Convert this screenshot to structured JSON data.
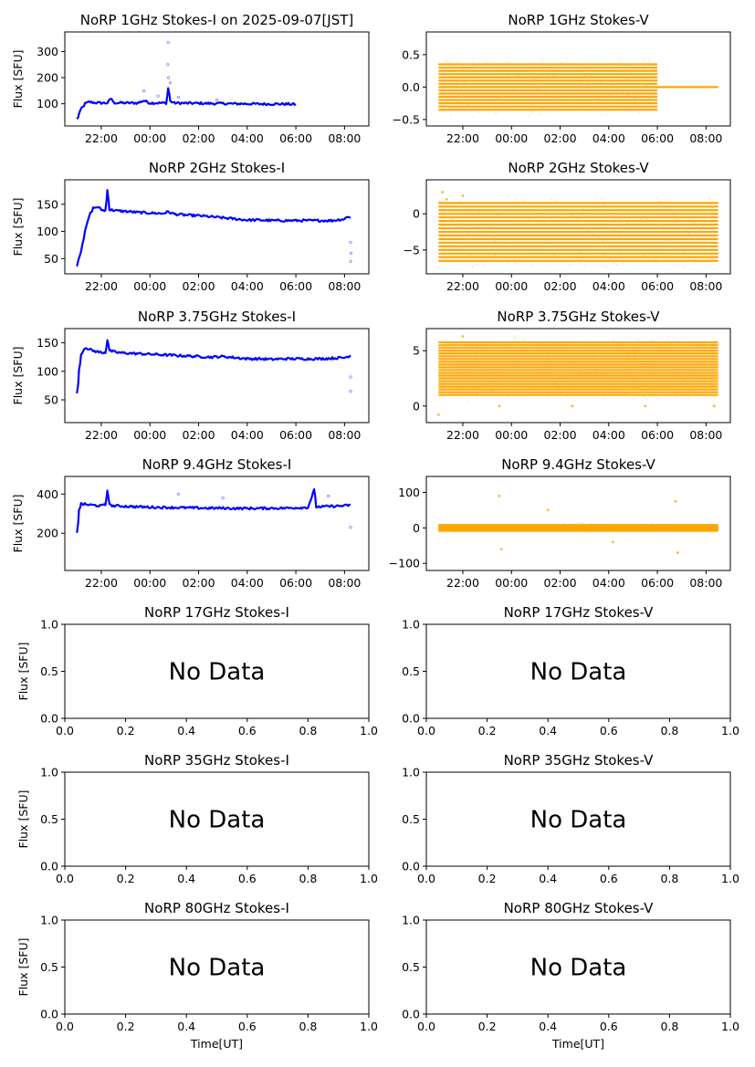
{
  "figure": {
    "x_axis_label": "Time[UT]",
    "y_axis_label": "Flux [SFU]",
    "no_data_label": "No Data"
  },
  "colors": {
    "stokes_i": "#0000ff",
    "stokes_v": "#ffa500",
    "axes": "#000000"
  },
  "chart_data": [
    {
      "id": "p1i",
      "type": "line",
      "title": "NoRP 1GHz Stokes-I on 2025-09-07[JST]",
      "has_data": true,
      "color": "#0000ff",
      "xaxis": "time",
      "xlim": [
        "20:30",
        "09:00"
      ],
      "xticks": [
        "22:00",
        "00:00",
        "02:00",
        "04:00",
        "06:00",
        "08:00"
      ],
      "ylim": [
        15,
        375
      ],
      "yticks": [
        100,
        200,
        300
      ],
      "ylabel": "Flux [SFU]",
      "series": [
        {
          "x": [
            "21:00",
            "21:05",
            "21:10",
            "21:20",
            "21:30",
            "21:45",
            "22:00",
            "22:15",
            "22:25",
            "22:30",
            "23:00",
            "23:30",
            "23:45",
            "00:00",
            "00:20",
            "00:40",
            "00:45",
            "00:50",
            "01:00",
            "01:30",
            "02:00",
            "02:30",
            "03:00",
            "03:30",
            "04:00",
            "04:30",
            "05:00",
            "05:30",
            "06:00"
          ],
          "y": [
            40,
            60,
            80,
            100,
            107,
            104,
            103,
            103,
            120,
            104,
            103,
            103,
            112,
            103,
            103,
            103,
            160,
            110,
            103,
            102,
            102,
            101,
            101,
            100,
            100,
            99,
            99,
            99,
            98
          ],
          "outliers": [
            {
              "x": "00:45",
              "y": 335
            },
            {
              "x": "00:44",
              "y": 250
            },
            {
              "x": "00:46",
              "y": 200
            },
            {
              "x": "23:45",
              "y": 150
            },
            {
              "x": "00:20",
              "y": 130
            },
            {
              "x": "02:45",
              "y": 115
            },
            {
              "x": "00:50",
              "y": 180
            },
            {
              "x": "01:10",
              "y": 125
            }
          ]
        }
      ]
    },
    {
      "id": "p1v",
      "type": "scatter",
      "title": "NoRP 1GHz Stokes-V",
      "has_data": true,
      "color": "#ffa500",
      "xaxis": "time",
      "xlim": [
        "20:30",
        "09:00"
      ],
      "xticks": [
        "22:00",
        "00:00",
        "02:00",
        "04:00",
        "06:00",
        "08:00"
      ],
      "ylim": [
        -0.6,
        0.85
      ],
      "yticks": [
        -0.5,
        0.0,
        0.5
      ],
      "ytick_labels": [
        "−0.5",
        "0.0",
        "0.5"
      ],
      "series": [
        {
          "x_range": [
            "21:00",
            "06:00"
          ],
          "levels": [
            -0.35,
            0.35
          ],
          "step": 0.05,
          "tail": {
            "x_range": [
              "06:00",
              "08:30"
            ],
            "y": 0.0
          }
        }
      ]
    },
    {
      "id": "p2i",
      "type": "line",
      "title": "NoRP 2GHz Stokes-I",
      "has_data": true,
      "color": "#0000ff",
      "xaxis": "time",
      "xlim": [
        "20:30",
        "09:00"
      ],
      "xticks": [
        "22:00",
        "00:00",
        "02:00",
        "04:00",
        "06:00",
        "08:00"
      ],
      "ylim": [
        22,
        195
      ],
      "yticks": [
        50,
        100,
        150
      ],
      "ylabel": "Flux [SFU]",
      "series": [
        {
          "x": [
            "21:00",
            "21:10",
            "21:20",
            "21:30",
            "21:40",
            "21:50",
            "22:00",
            "22:10",
            "22:15",
            "22:20",
            "22:40",
            "23:00",
            "23:30",
            "00:00",
            "00:30",
            "00:45",
            "01:00",
            "01:30",
            "02:00",
            "02:30",
            "03:00",
            "03:30",
            "04:00",
            "04:30",
            "05:00",
            "05:30",
            "06:00",
            "06:30",
            "07:00",
            "07:30",
            "08:00",
            "08:10",
            "08:15"
          ],
          "y": [
            38,
            65,
            100,
            128,
            143,
            145,
            140,
            138,
            176,
            140,
            138,
            137,
            135,
            134,
            133,
            136,
            132,
            130,
            129,
            127,
            125,
            123,
            121,
            121,
            120,
            120,
            120,
            120,
            120,
            120,
            123,
            128,
            125
          ],
          "outliers": [
            {
              "x": "08:15",
              "y": 45
            },
            {
              "x": "08:16",
              "y": 60
            },
            {
              "x": "08:15",
              "y": 80
            }
          ]
        }
      ]
    },
    {
      "id": "p2v",
      "type": "scatter",
      "title": "NoRP 2GHz Stokes-V",
      "has_data": true,
      "color": "#ffa500",
      "xaxis": "time",
      "xlim": [
        "20:30",
        "09:00"
      ],
      "xticks": [
        "22:00",
        "00:00",
        "02:00",
        "04:00",
        "06:00",
        "08:00"
      ],
      "ylim": [
        -8.3,
        4.7
      ],
      "yticks": [
        -5,
        0
      ],
      "ytick_labels": [
        "−5",
        "0"
      ],
      "series": [
        {
          "x_range": [
            "21:00",
            "08:30"
          ],
          "levels": [
            -6.5,
            1.5
          ],
          "step": 0.5,
          "extra": [
            {
              "x": "21:10",
              "y": 3.0
            },
            {
              "x": "22:00",
              "y": 2.5
            },
            {
              "x": "21:20",
              "y": 2.0
            }
          ]
        }
      ]
    },
    {
      "id": "p3i",
      "type": "line",
      "title": "NoRP 3.75GHz Stokes-I",
      "has_data": true,
      "color": "#0000ff",
      "xaxis": "time",
      "xlim": [
        "20:30",
        "09:00"
      ],
      "xticks": [
        "22:00",
        "00:00",
        "02:00",
        "04:00",
        "06:00",
        "08:00"
      ],
      "ylim": [
        10,
        175
      ],
      "yticks": [
        50,
        100,
        150
      ],
      "ylabel": "Flux [SFU]",
      "series": [
        {
          "x": [
            "21:00",
            "21:05",
            "21:10",
            "21:20",
            "21:40",
            "22:00",
            "22:10",
            "22:15",
            "22:20",
            "22:40",
            "23:00",
            "23:30",
            "00:00",
            "00:30",
            "01:00",
            "01:30",
            "02:00",
            "02:30",
            "03:00",
            "03:30",
            "04:00",
            "04:30",
            "05:00",
            "05:30",
            "06:00",
            "06:30",
            "07:00",
            "07:30",
            "08:00",
            "08:15"
          ],
          "y": [
            60,
            100,
            130,
            142,
            136,
            133,
            133,
            156,
            136,
            133,
            132,
            131,
            130,
            129,
            128,
            127,
            126,
            125,
            126,
            124,
            122,
            122,
            121,
            122,
            122,
            122,
            122,
            123,
            124,
            128
          ],
          "outliers": [
            {
              "x": "08:15",
              "y": 65
            },
            {
              "x": "08:15",
              "y": 90
            }
          ]
        }
      ]
    },
    {
      "id": "p3v",
      "type": "scatter",
      "title": "NoRP 3.75GHz Stokes-V",
      "has_data": true,
      "color": "#ffa500",
      "xaxis": "time",
      "xlim": [
        "20:30",
        "09:00"
      ],
      "xticks": [
        "22:00",
        "00:00",
        "02:00",
        "04:00",
        "06:00",
        "08:00"
      ],
      "ylim": [
        -1.5,
        7.0
      ],
      "yticks": [
        0,
        5
      ],
      "series": [
        {
          "x_range": [
            "21:00",
            "08:30"
          ],
          "levels": [
            1.0,
            5.8
          ],
          "step": 0.25,
          "extra": [
            {
              "x": "21:00",
              "y": -0.8
            },
            {
              "x": "23:30",
              "y": 0.0
            },
            {
              "x": "02:30",
              "y": 0.0
            },
            {
              "x": "05:30",
              "y": 0.0
            },
            {
              "x": "08:20",
              "y": 0.0
            },
            {
              "x": "22:00",
              "y": 6.3
            }
          ]
        }
      ]
    },
    {
      "id": "p4i",
      "type": "line",
      "title": "NoRP 9.4GHz Stokes-I",
      "has_data": true,
      "color": "#0000ff",
      "xaxis": "time",
      "xlim": [
        "20:30",
        "09:00"
      ],
      "xticks": [
        "22:00",
        "00:00",
        "02:00",
        "04:00",
        "06:00",
        "08:00"
      ],
      "ylim": [
        10,
        490
      ],
      "yticks": [
        200,
        400
      ],
      "ylabel": "Flux [SFU]",
      "series": [
        {
          "x": [
            "21:00",
            "21:05",
            "21:10",
            "21:30",
            "22:00",
            "22:10",
            "22:15",
            "22:20",
            "22:30",
            "23:00",
            "23:30",
            "00:00",
            "00:30",
            "01:00",
            "01:30",
            "02:00",
            "02:30",
            "03:00",
            "03:30",
            "04:00",
            "04:30",
            "05:00",
            "05:30",
            "06:00",
            "06:30",
            "06:45",
            "06:50",
            "07:00",
            "07:30",
            "08:00",
            "08:15"
          ],
          "y": [
            200,
            320,
            350,
            345,
            340,
            345,
            420,
            345,
            340,
            338,
            335,
            333,
            332,
            331,
            330,
            329,
            328,
            328,
            327,
            327,
            327,
            328,
            328,
            330,
            332,
            420,
            335,
            335,
            338,
            340,
            345
          ],
          "outliers": [
            {
              "x": "08:15",
              "y": 230
            },
            {
              "x": "07:20",
              "y": 390
            },
            {
              "x": "03:00",
              "y": 380
            },
            {
              "x": "01:10",
              "y": 400
            }
          ]
        }
      ]
    },
    {
      "id": "p4v",
      "type": "scatter",
      "title": "NoRP 9.4GHz Stokes-V",
      "has_data": true,
      "color": "#ffa500",
      "xaxis": "time",
      "xlim": [
        "20:30",
        "09:00"
      ],
      "xticks": [
        "22:00",
        "00:00",
        "02:00",
        "04:00",
        "06:00",
        "08:00"
      ],
      "ylim": [
        -120,
        145
      ],
      "yticks": [
        -100,
        0,
        100
      ],
      "ytick_labels": [
        "−100",
        "0",
        "100"
      ],
      "series": [
        {
          "x_range": [
            "21:00",
            "08:30"
          ],
          "levels": [
            -8,
            8
          ],
          "step": 2,
          "extra": [
            {
              "x": "23:30",
              "y": 90
            },
            {
              "x": "23:35",
              "y": -60
            },
            {
              "x": "06:45",
              "y": 75
            },
            {
              "x": "06:50",
              "y": -70
            },
            {
              "x": "01:30",
              "y": 50
            },
            {
              "x": "04:10",
              "y": -40
            }
          ]
        }
      ]
    },
    {
      "id": "p5i",
      "type": "empty",
      "title": "NoRP 17GHz Stokes-I",
      "has_data": false,
      "xlim": [
        0,
        1
      ],
      "ylim": [
        0,
        1
      ],
      "ylabel": "Flux [SFU]",
      "xticks": [
        "0.0",
        "0.2",
        "0.4",
        "0.6",
        "0.8",
        "1.0"
      ],
      "yticks": [
        "0.0",
        "0.5",
        "1.0"
      ]
    },
    {
      "id": "p5v",
      "type": "empty",
      "title": "NoRP 17GHz Stokes-V",
      "has_data": false,
      "xlim": [
        0,
        1
      ],
      "ylim": [
        0,
        1
      ],
      "xticks": [
        "0.0",
        "0.2",
        "0.4",
        "0.6",
        "0.8",
        "1.0"
      ],
      "yticks": [
        "0.0",
        "0.5",
        "1.0"
      ]
    },
    {
      "id": "p6i",
      "type": "empty",
      "title": "NoRP 35GHz Stokes-I",
      "has_data": false,
      "xlim": [
        0,
        1
      ],
      "ylim": [
        0,
        1
      ],
      "ylabel": "Flux [SFU]",
      "xticks": [
        "0.0",
        "0.2",
        "0.4",
        "0.6",
        "0.8",
        "1.0"
      ],
      "yticks": [
        "0.0",
        "0.5",
        "1.0"
      ]
    },
    {
      "id": "p6v",
      "type": "empty",
      "title": "NoRP 35GHz Stokes-V",
      "has_data": false,
      "xlim": [
        0,
        1
      ],
      "ylim": [
        0,
        1
      ],
      "xticks": [
        "0.0",
        "0.2",
        "0.4",
        "0.6",
        "0.8",
        "1.0"
      ],
      "yticks": [
        "0.0",
        "0.5",
        "1.0"
      ]
    },
    {
      "id": "p7i",
      "type": "empty",
      "title": "NoRP 80GHz Stokes-I",
      "has_data": false,
      "xlim": [
        0,
        1
      ],
      "ylim": [
        0,
        1
      ],
      "ylabel": "Flux [SFU]",
      "xlabel": "Time[UT]",
      "xticks": [
        "0.0",
        "0.2",
        "0.4",
        "0.6",
        "0.8",
        "1.0"
      ],
      "yticks": [
        "0.0",
        "0.5",
        "1.0"
      ]
    },
    {
      "id": "p7v",
      "type": "empty",
      "title": "NoRP 80GHz Stokes-V",
      "has_data": false,
      "xlim": [
        0,
        1
      ],
      "ylim": [
        0,
        1
      ],
      "xlabel": "Time[UT]",
      "xticks": [
        "0.0",
        "0.2",
        "0.4",
        "0.6",
        "0.8",
        "1.0"
      ],
      "yticks": [
        "0.0",
        "0.5",
        "1.0"
      ]
    }
  ]
}
